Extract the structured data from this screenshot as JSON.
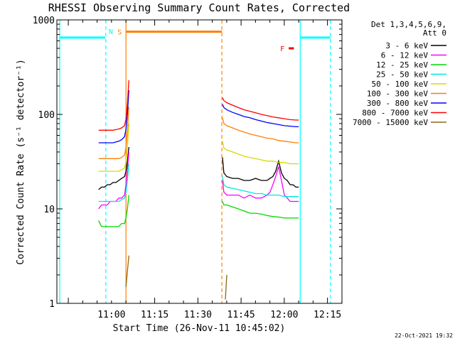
{
  "chart_data": {
    "type": "line",
    "title": "RHESSI Observing Summary Count Rates, Corrected",
    "xlabel": "Start Time (26-Nov-11 10:45:02)",
    "ylabel": "Corrected Count Rate (s⁻¹ detector⁻¹)",
    "yscale": "log",
    "ylim": [
      1,
      1000
    ],
    "xlim": [
      -4,
      95
    ],
    "x_units": "minutes after 10:45:02",
    "x_ticks": [
      {
        "x": 14.97,
        "label": "11:00"
      },
      {
        "x": 29.97,
        "label": "11:15"
      },
      {
        "x": 44.97,
        "label": "11:30"
      },
      {
        "x": 59.97,
        "label": "11:45"
      },
      {
        "x": 74.97,
        "label": "12:00"
      },
      {
        "x": 89.97,
        "label": "12:15"
      }
    ],
    "y_ticks": [
      {
        "y": 1,
        "label": "1"
      },
      {
        "y": 10,
        "label": "10"
      },
      {
        "y": 100,
        "label": "100"
      },
      {
        "y": 1000,
        "label": "1000"
      }
    ],
    "legend": {
      "header": [
        "Det 1,3,4,5,6,9,",
        "Att 0"
      ],
      "position": "right",
      "items": [
        {
          "label": "3 - 6 keV",
          "color": "#000000"
        },
        {
          "label": "6 - 12 keV",
          "color": "#ff00ff"
        },
        {
          "label": "12 - 25 keV",
          "color": "#00d800"
        },
        {
          "label": "25 - 50 keV",
          "color": "#00e6e6"
        },
        {
          "label": "50 - 100 keV",
          "color": "#d8d800"
        },
        {
          "label": "100 - 300 keV",
          "color": "#ff7f00"
        },
        {
          "label": "300 - 800 keV",
          "color": "#0000ff"
        },
        {
          "label": "800 - 7000 keV",
          "color": "#ff0000"
        },
        {
          "label": "7000 - 15000 keV",
          "color": "#8b6914"
        }
      ]
    },
    "series": [
      {
        "name": "3 - 6 keV",
        "color": "#000000",
        "x": [
          10.5,
          11.5,
          12.5,
          13.5,
          14.5,
          15.5,
          16.5,
          17.5,
          18.5,
          19.5,
          20.0,
          20.5,
          21.0,
          null,
          53.5,
          54.0,
          55,
          57,
          59,
          61,
          63,
          65,
          67,
          69,
          70,
          71,
          72,
          73,
          74,
          75,
          76,
          77,
          78,
          79,
          80
        ],
        "y": [
          16,
          17,
          17,
          18,
          18,
          19,
          19,
          20,
          21,
          22,
          25,
          32,
          45,
          null,
          35,
          24,
          22,
          21,
          21,
          20,
          20,
          21,
          20,
          20,
          21,
          22,
          25,
          32,
          24,
          21,
          20,
          18,
          18,
          17,
          17
        ]
      },
      {
        "name": "6 - 12 keV",
        "color": "#ff00ff",
        "x": [
          10.5,
          11.5,
          12.5,
          13.5,
          14.5,
          15.5,
          16.5,
          17.5,
          18.5,
          19.5,
          20.0,
          20.5,
          21.0,
          null,
          53.5,
          54.0,
          55,
          57,
          59,
          61,
          63,
          65,
          67,
          69,
          70,
          71,
          72,
          73,
          74,
          75,
          76,
          77,
          78,
          79,
          80
        ],
        "y": [
          10,
          11,
          11,
          11,
          12,
          12,
          12,
          13,
          13,
          14,
          18,
          26,
          40,
          null,
          20,
          15,
          14,
          14,
          14,
          13,
          14,
          13,
          13,
          14,
          15,
          18,
          22,
          28,
          20,
          14,
          13,
          12,
          12,
          12,
          12
        ]
      },
      {
        "name": "12 - 25 keV",
        "color": "#00d800",
        "x": [
          10.5,
          11.5,
          12.5,
          13.5,
          14.5,
          15.5,
          16.5,
          17.5,
          18.5,
          19.5,
          20.0,
          20.5,
          21.0,
          null,
          53.5,
          54.0,
          55,
          57,
          59,
          61,
          63,
          65,
          67,
          69,
          71,
          73,
          75,
          77,
          79,
          80
        ],
        "y": [
          7.5,
          6.5,
          6.5,
          6.5,
          6.5,
          6.5,
          6.5,
          6.5,
          7,
          7,
          8,
          10,
          14,
          null,
          12,
          11,
          11,
          10.5,
          10,
          9.5,
          9,
          9,
          8.8,
          8.5,
          8.3,
          8.2,
          8,
          8,
          8,
          8
        ]
      },
      {
        "name": "25 - 50 keV",
        "color": "#00e6e6",
        "x": [
          10.5,
          11.5,
          12.5,
          13.5,
          14.5,
          15.5,
          16.5,
          17.5,
          18.5,
          19.5,
          20.0,
          20.5,
          21.0,
          null,
          53.5,
          54.0,
          55,
          57,
          59,
          61,
          63,
          65,
          67,
          69,
          71,
          73,
          75,
          77,
          79,
          80
        ],
        "y": [
          12,
          12,
          12,
          12,
          12,
          12,
          12,
          12,
          12.5,
          13,
          15,
          20,
          30,
          null,
          22,
          18,
          17,
          16.5,
          16,
          15.5,
          15,
          14.5,
          14.5,
          14,
          14,
          14,
          13.5,
          13.5,
          13.5,
          13.5
        ]
      },
      {
        "name": "50 - 100 keV",
        "color": "#d8d800",
        "x": [
          10.5,
          11.5,
          12.5,
          13.5,
          14.5,
          15.5,
          16.5,
          17.5,
          18.5,
          19.5,
          20.0,
          20.5,
          21.0,
          null,
          53.5,
          54.0,
          55,
          57,
          59,
          61,
          63,
          65,
          67,
          69,
          71,
          73,
          75,
          77,
          79,
          80
        ],
        "y": [
          25,
          25,
          25,
          25,
          25,
          25,
          25,
          25,
          26,
          27,
          32,
          45,
          80,
          null,
          52,
          44,
          42,
          40,
          38,
          36,
          35,
          34,
          33,
          32,
          32,
          31,
          31,
          30,
          30,
          30
        ]
      },
      {
        "name": "100 - 300 keV",
        "color": "#ff7f00",
        "x": [
          10.5,
          11.5,
          12.5,
          13.5,
          14.5,
          15.5,
          16.5,
          17.5,
          18.5,
          19.5,
          20.0,
          20.5,
          21.0,
          null,
          53.5,
          54.0,
          55,
          57,
          59,
          61,
          63,
          65,
          67,
          69,
          71,
          73,
          75,
          77,
          79,
          80
        ],
        "y": [
          34,
          34,
          34,
          34,
          34,
          34,
          34,
          34,
          35,
          37,
          45,
          65,
          120,
          null,
          92,
          80,
          76,
          72,
          68,
          65,
          62,
          60,
          58,
          56,
          55,
          53,
          52,
          51,
          50,
          50
        ]
      },
      {
        "name": "300 - 800 keV",
        "color": "#0000ff",
        "x": [
          10.5,
          11.5,
          12.5,
          13.5,
          14.5,
          15.5,
          16.5,
          17.5,
          18.5,
          19.5,
          20.0,
          20.5,
          21.0,
          null,
          53.5,
          54.0,
          55,
          57,
          59,
          61,
          63,
          65,
          67,
          69,
          71,
          73,
          75,
          77,
          79,
          80
        ],
        "y": [
          50,
          50,
          50,
          50,
          50,
          50,
          51,
          52,
          54,
          58,
          70,
          100,
          180,
          null,
          128,
          118,
          112,
          105,
          100,
          95,
          92,
          88,
          85,
          82,
          80,
          78,
          76,
          75,
          74,
          74
        ]
      },
      {
        "name": "800 - 7000 keV",
        "color": "#ff0000",
        "x": [
          10.5,
          11.5,
          12.5,
          13.5,
          14.5,
          15.5,
          16.5,
          17.5,
          18.5,
          19.5,
          20.0,
          20.5,
          21.0,
          null,
          53.5,
          54.0,
          55,
          57,
          59,
          61,
          63,
          65,
          67,
          69,
          71,
          73,
          75,
          77,
          79,
          80
        ],
        "y": [
          68,
          68,
          68,
          68,
          68,
          68,
          69,
          70,
          72,
          76,
          90,
          130,
          230,
          null,
          150,
          140,
          133,
          125,
          118,
          112,
          108,
          104,
          100,
          97,
          94,
          92,
          90,
          88,
          87,
          87
        ]
      },
      {
        "name": "7000 - 15000 keV",
        "color": "#8b6914",
        "x": [
          20.0,
          20.5,
          21.0,
          null,
          54.5,
          55.0
        ],
        "y": [
          1.5,
          2.2,
          3.2,
          null,
          1.1,
          2.0
        ]
      }
    ],
    "state_bars": [
      {
        "label": "",
        "color": "#00ffff",
        "x_start": -3,
        "x_end": 12.8,
        "y": 650
      },
      {
        "label": "",
        "color": "#00ffff",
        "x_start": 80.5,
        "x_end": 91,
        "y": 650
      },
      {
        "label": "S",
        "color": "#ff7f00",
        "x_start": 20.0,
        "x_end": 53.3,
        "y": 750
      },
      {
        "label": "F",
        "color": "#ff0000",
        "x_start": 76.5,
        "x_end": 78.3,
        "y": 500
      }
    ],
    "markers": [
      {
        "label": "N",
        "color": "#00ffff",
        "style": "dashed",
        "x": 13.0
      },
      {
        "label": "",
        "color": "#00ffff",
        "style": "solid",
        "x": -3.0
      },
      {
        "label": "",
        "color": "#00ffff",
        "style": "solid",
        "x": 80.5
      },
      {
        "label": "",
        "color": "#00ffff",
        "style": "dashed",
        "x": 91.0
      },
      {
        "label": "",
        "color": "#ff7f00",
        "style": "solid",
        "x": 20.0
      },
      {
        "label": "",
        "color": "#ff7f00",
        "style": "dashed",
        "x": 53.3
      }
    ],
    "grid": false
  },
  "footer": {
    "timestamp": "22-Oct-2021 19:32"
  }
}
